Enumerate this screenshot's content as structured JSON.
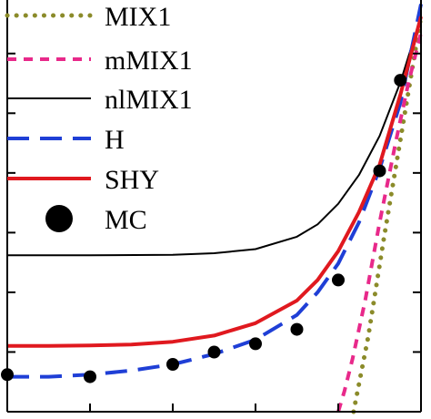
{
  "chart_data": {
    "type": "line",
    "xlim": [
      0,
      1
    ],
    "ylim": [
      0,
      1
    ],
    "grid": false,
    "legend_placement": "top-left",
    "tick_labels_visible": false,
    "series": [
      {
        "name": "MIX1",
        "style": "dotted",
        "color": "#8b8b2a",
        "x": [
          0.837,
          0.872,
          0.91,
          0.95,
          1.0
        ],
        "y": [
          0.0,
          0.18,
          0.42,
          0.66,
          0.96
        ]
      },
      {
        "name": "mMIX1",
        "style": "dashed",
        "color": "#e8298a",
        "x": [
          0.8,
          0.815,
          0.835,
          0.865,
          0.9,
          0.94,
          0.97,
          1.0
        ],
        "y": [
          0.0,
          0.05,
          0.13,
          0.27,
          0.46,
          0.66,
          0.8,
          0.92
        ]
      },
      {
        "name": "nlMIX1",
        "style": "solid-thin",
        "color": "#000000",
        "x": [
          0.0,
          0.2,
          0.4,
          0.5,
          0.6,
          0.7,
          0.75,
          0.8,
          0.85,
          0.9,
          0.95,
          1.0
        ],
        "y": [
          0.38,
          0.38,
          0.381,
          0.385,
          0.395,
          0.425,
          0.455,
          0.505,
          0.575,
          0.67,
          0.8,
          0.96
        ]
      },
      {
        "name": "H",
        "style": "dashed-long",
        "color": "#1f3fd6",
        "x": [
          0.0,
          0.1,
          0.2,
          0.3,
          0.4,
          0.5,
          0.6,
          0.7,
          0.75,
          0.8,
          0.85,
          0.9,
          0.95,
          1.0
        ],
        "y": [
          0.085,
          0.085,
          0.09,
          0.1,
          0.115,
          0.14,
          0.175,
          0.235,
          0.29,
          0.36,
          0.46,
          0.59,
          0.75,
          0.99
        ]
      },
      {
        "name": "SHY",
        "style": "solid-thick",
        "color": "#e0191f",
        "x": [
          0.0,
          0.1,
          0.2,
          0.3,
          0.4,
          0.5,
          0.6,
          0.7,
          0.75,
          0.8,
          0.85,
          0.9,
          0.95,
          1.0
        ],
        "y": [
          0.16,
          0.16,
          0.161,
          0.163,
          0.17,
          0.185,
          0.215,
          0.27,
          0.32,
          0.39,
          0.485,
          0.6,
          0.77,
          0.96
        ]
      },
      {
        "name": "MC",
        "style": "marker",
        "color": "#000000",
        "x": [
          0.0,
          0.2,
          0.4,
          0.5,
          0.6,
          0.7,
          0.8,
          0.9,
          0.95
        ],
        "y": [
          0.09,
          0.085,
          0.115,
          0.145,
          0.165,
          0.2,
          0.32,
          0.585,
          0.805
        ]
      }
    ]
  }
}
